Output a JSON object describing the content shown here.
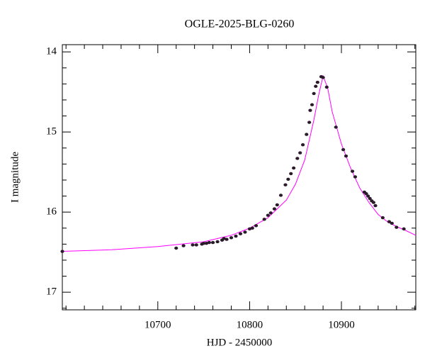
{
  "chart_data": {
    "type": "scatter",
    "title": "OGLE-2025-BLG-0260",
    "x_label": "HJD - 2450000",
    "y_label": "I magnitude",
    "xlim": [
      10596,
      10981
    ],
    "ylim": [
      17.22,
      13.91
    ],
    "xticks": [
      10700,
      10800,
      10900
    ],
    "yticks": [
      14,
      15,
      16,
      17
    ],
    "xminorticks": [
      10600,
      10620,
      10640,
      10660,
      10680,
      10720,
      10740,
      10760,
      10780,
      10820,
      10840,
      10860,
      10880,
      10920,
      10940,
      10960,
      10980
    ],
    "yminorticks": [
      14.2,
      14.4,
      14.6,
      14.8,
      15.2,
      15.4,
      15.6,
      15.8,
      16.2,
      16.4,
      16.6,
      16.8,
      17.2
    ],
    "points": {
      "color": "#2a1a2a",
      "x": [
        10596,
        10720,
        10728,
        10738,
        10742,
        10748,
        10750,
        10753,
        10756,
        10760,
        10765,
        10770,
        10772,
        10775,
        10780,
        10785,
        10790,
        10795,
        10800,
        10803,
        10807,
        10816,
        10820,
        10823,
        10827,
        10830,
        10834,
        10839,
        10842,
        10845,
        10848,
        10852,
        10855,
        10858,
        10862,
        10865,
        10866,
        10868,
        10870,
        10872,
        10874,
        10878,
        10880,
        10884,
        10894,
        10902,
        10905,
        10912,
        10915,
        10925,
        10927,
        10929,
        10931,
        10933,
        10935,
        10937,
        10945,
        10952,
        10955,
        10960,
        10968
      ],
      "values": [
        16.49,
        16.45,
        16.42,
        16.41,
        16.41,
        16.4,
        16.39,
        16.39,
        16.38,
        16.38,
        16.37,
        16.35,
        16.33,
        16.34,
        16.32,
        16.3,
        16.27,
        16.25,
        16.21,
        16.2,
        16.17,
        16.09,
        16.04,
        16.01,
        15.96,
        15.91,
        15.79,
        15.66,
        15.59,
        15.52,
        15.45,
        15.33,
        15.26,
        15.16,
        15.03,
        14.88,
        14.73,
        14.66,
        14.52,
        14.43,
        14.38,
        14.31,
        14.32,
        14.44,
        14.94,
        15.22,
        15.3,
        15.49,
        15.56,
        15.75,
        15.77,
        15.8,
        15.83,
        15.86,
        15.88,
        15.92,
        16.07,
        16.12,
        16.14,
        16.19,
        16.21
      ]
    },
    "model": {
      "color": "#ff00ff",
      "x": [
        10596,
        10650,
        10700,
        10750,
        10780,
        10800,
        10820,
        10840,
        10850,
        10860,
        10870,
        10875,
        10880,
        10885,
        10890,
        10900,
        10910,
        10920,
        10930,
        10940,
        10950,
        10960,
        10970,
        10981
      ],
      "values": [
        16.49,
        16.47,
        16.43,
        16.37,
        16.29,
        16.2,
        16.07,
        15.85,
        15.65,
        15.35,
        14.85,
        14.55,
        14.3,
        14.45,
        14.75,
        15.15,
        15.45,
        15.7,
        15.88,
        16.03,
        16.12,
        16.18,
        16.23,
        16.29
      ]
    }
  }
}
